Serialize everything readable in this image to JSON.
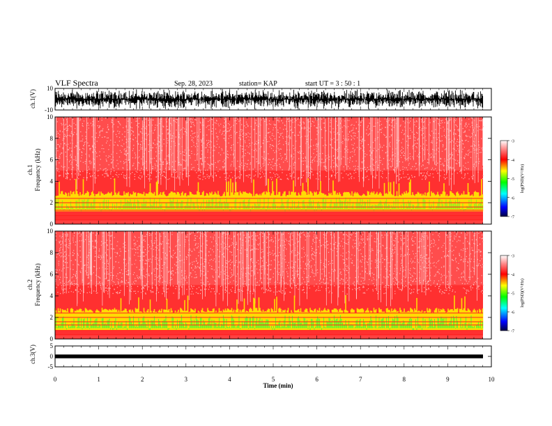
{
  "header": {
    "title": "VLF Spectra",
    "date": "Sep. 28, 2023",
    "station": "station= KAP",
    "start_ut": "start  UT =   3  : 50 : 1"
  },
  "chart_data": [
    {
      "type": "line",
      "panel": "ch1-waveform",
      "ylabel": "ch.1(V)",
      "ylim": [
        -10,
        10
      ],
      "yticks": [
        "10",
        "-10"
      ],
      "xlim": [
        0,
        10
      ],
      "color": "#000000"
    },
    {
      "type": "heatmap",
      "panel": "ch1-spectrogram",
      "ylabel": "ch.1\nFrequency  (kHz)",
      "ylim": [
        0,
        10
      ],
      "yticks": [
        "0",
        "2",
        "4",
        "6",
        "8",
        "10"
      ],
      "xlim": [
        0,
        10
      ],
      "colorbar": {
        "label": "log(PSD)(V²/Hz)",
        "ticks": [
          "-3",
          "-4",
          "-5",
          "-6",
          "-7"
        ],
        "range": [
          -7,
          -3
        ]
      }
    },
    {
      "type": "heatmap",
      "panel": "ch2-spectrogram",
      "ylabel": "ch.2\nFrequency  (kHz)",
      "ylim": [
        0,
        10
      ],
      "yticks": [
        "0",
        "2",
        "4",
        "6",
        "8",
        "10"
      ],
      "xlim": [
        0,
        10
      ],
      "colorbar": {
        "label": "log(PSD)(V²/Hz)",
        "ticks": [
          "-3",
          "-4",
          "-5",
          "-6",
          "-7"
        ],
        "range": [
          -7,
          -3
        ]
      }
    },
    {
      "type": "line",
      "panel": "ch3-waveform",
      "ylabel": "ch.3(V)",
      "ylim": [
        -5,
        5
      ],
      "yticks": [
        "5",
        "0",
        "-5"
      ],
      "xlim": [
        0,
        10
      ],
      "xlabel": "Time  (min)",
      "xticks": [
        "0",
        "1",
        "2",
        "3",
        "4",
        "5",
        "6",
        "7",
        "8",
        "9",
        "10"
      ],
      "color": "#000000"
    }
  ],
  "colors": {
    "background": "#ffffff",
    "spectrogram_low": "#ff2a2a",
    "spectrogram_mid": "#ffff00",
    "spectrogram_high": "#22ff22",
    "colormap": [
      "#000044",
      "#0000ff",
      "#00ffff",
      "#00ff00",
      "#ffff00",
      "#ff0000",
      "#ffffff"
    ]
  }
}
